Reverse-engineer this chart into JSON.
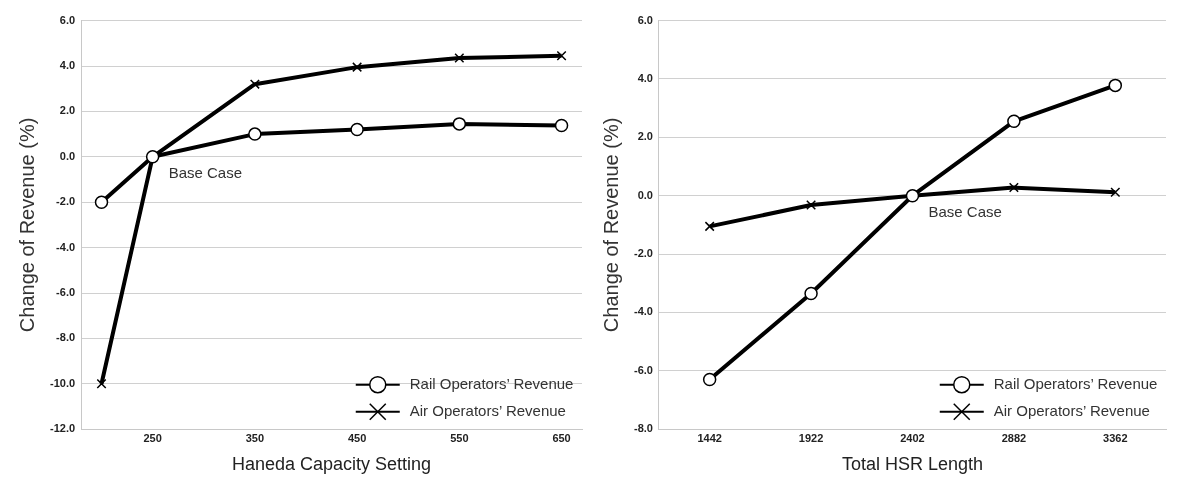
{
  "chart_data": [
    {
      "type": "line",
      "xlabel": "Haneda Capacity Setting",
      "ylabel": "Change of Revenue (%)",
      "x": [
        200,
        250,
        350,
        450,
        550,
        650
      ],
      "xlim": [
        180,
        670
      ],
      "xticks": [
        250,
        350,
        450,
        550,
        650
      ],
      "ylim": [
        -12,
        6
      ],
      "yticks": [
        {
          "value": -12,
          "label": "-12.0"
        },
        {
          "value": -10,
          "label": "-10.0"
        },
        {
          "value": -8,
          "label": "-8.0"
        },
        {
          "value": -6,
          "label": "-6.0"
        },
        {
          "value": -4,
          "label": "-4.0"
        },
        {
          "value": -2,
          "label": "-2.0"
        },
        {
          "value": 0,
          "label": "0.0"
        },
        {
          "value": 2,
          "label": "2.0"
        },
        {
          "value": 4,
          "label": "4.0"
        },
        {
          "value": 6,
          "label": "6.0"
        }
      ],
      "grid": "y",
      "legend": "bottom right",
      "annotations": [
        {
          "text": "Base Case",
          "x": 250,
          "y": 0
        }
      ],
      "series": [
        {
          "name": "Rail Operators’ Revenue",
          "color": "#000000",
          "marker": "circle",
          "values": [
            -2.0,
            0,
            1.0,
            1.2,
            1.45,
            1.38
          ]
        },
        {
          "name": "Air Operators’ Revenue",
          "color": "#000000",
          "marker": "cross",
          "values": [
            -10,
            0,
            3.2,
            3.95,
            4.35,
            4.45
          ]
        }
      ]
    },
    {
      "type": "line",
      "xlabel": "Total HSR Length",
      "ylabel": "Change of Revenue (%)",
      "categories": [
        "1442",
        "1922",
        "2402",
        "2882",
        "3362"
      ],
      "ylim": [
        -8,
        6
      ],
      "yticks": [
        {
          "value": -8,
          "label": "-8.0"
        },
        {
          "value": -6,
          "label": "-6.0"
        },
        {
          "value": -4,
          "label": "-4.0"
        },
        {
          "value": -2,
          "label": "-2.0"
        },
        {
          "value": 0,
          "label": "0.0"
        },
        {
          "value": 2,
          "label": "2.0"
        },
        {
          "value": 4,
          "label": "4.0"
        },
        {
          "value": 6,
          "label": "6.0"
        }
      ],
      "grid": "y",
      "legend": "bottom right",
      "annotations": [
        {
          "text": "Base Case",
          "x": "2402",
          "y": 0
        }
      ],
      "series": [
        {
          "name": "Rail Operators’ Revenue",
          "color": "#000000",
          "marker": "circle",
          "values": [
            -6.3,
            -3.35,
            0,
            2.55,
            3.78
          ]
        },
        {
          "name": "Air Operators’ Revenue",
          "color": "#000000",
          "marker": "cross",
          "values": [
            -1.05,
            -0.32,
            0,
            0.28,
            0.12
          ]
        }
      ]
    }
  ]
}
